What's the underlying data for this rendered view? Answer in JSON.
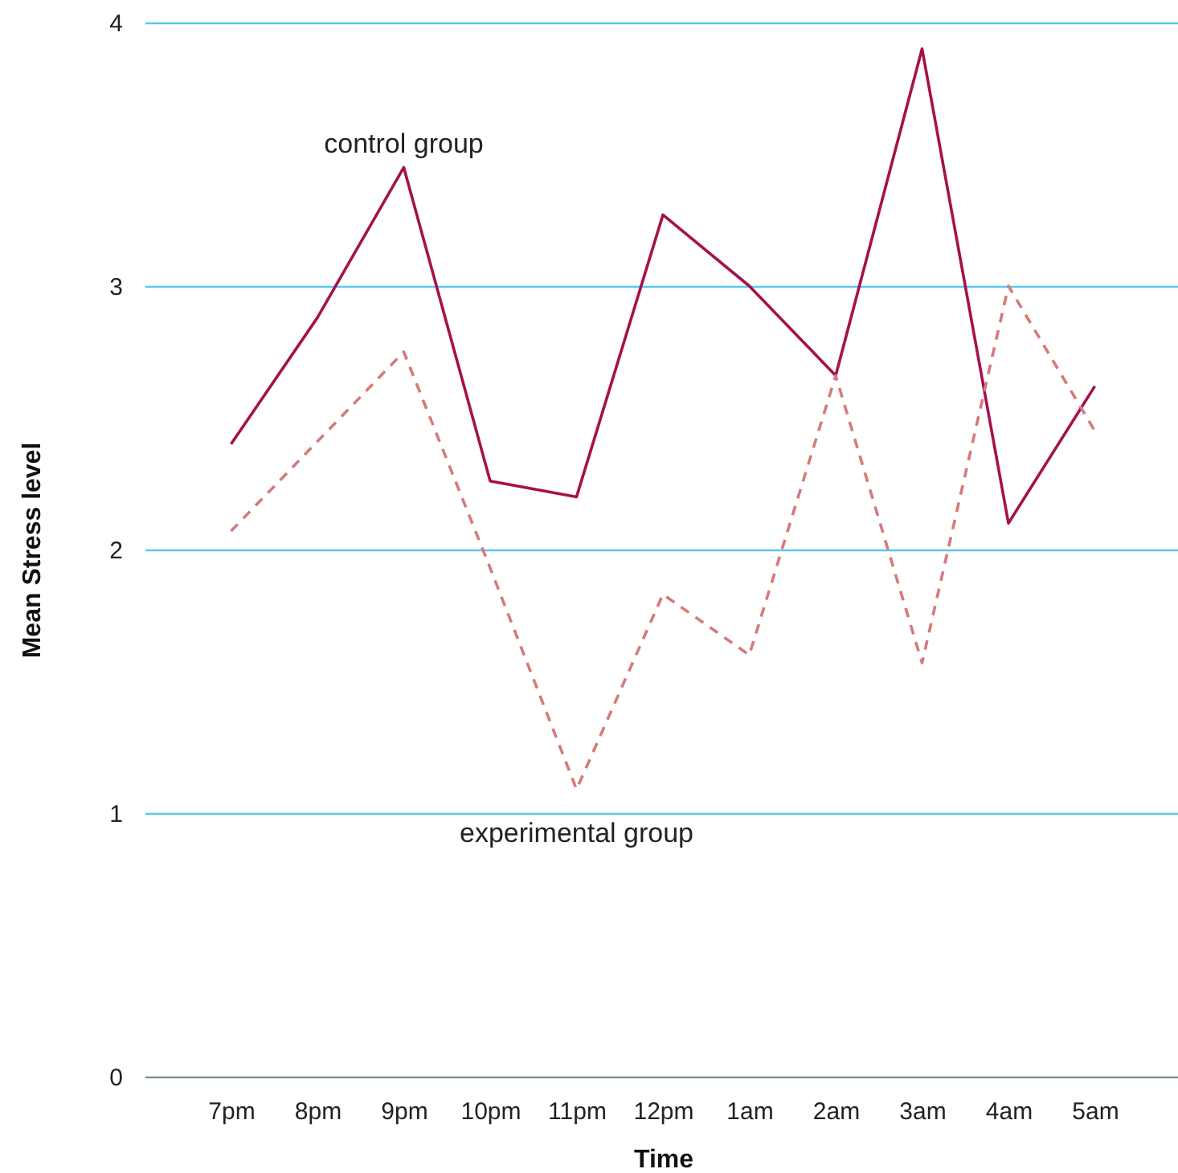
{
  "chart_data": {
    "type": "line",
    "xlabel": "Time",
    "ylabel": "Mean Stress level",
    "categories": [
      "7pm",
      "8pm",
      "9pm",
      "10pm",
      "11pm",
      "12pm",
      "1am",
      "2am",
      "3am",
      "4am",
      "5am"
    ],
    "series": [
      {
        "name": "control group",
        "color": "#a5124a",
        "line_style": "solid",
        "values": [
          2.4,
          2.88,
          3.45,
          2.26,
          2.2,
          3.27,
          3.0,
          2.66,
          3.9,
          2.1,
          2.62
        ]
      },
      {
        "name": "experimental group",
        "color": "#d67a7a",
        "line_style": "dashed",
        "values": [
          2.07,
          2.41,
          2.75,
          1.93,
          1.09,
          1.83,
          1.6,
          2.66,
          1.57,
          3.0,
          2.45
        ]
      }
    ],
    "ylim": [
      0,
      4
    ],
    "yticks": [
      0,
      1,
      2,
      3,
      4
    ],
    "grid": "y",
    "legend": false,
    "marker": "none"
  }
}
